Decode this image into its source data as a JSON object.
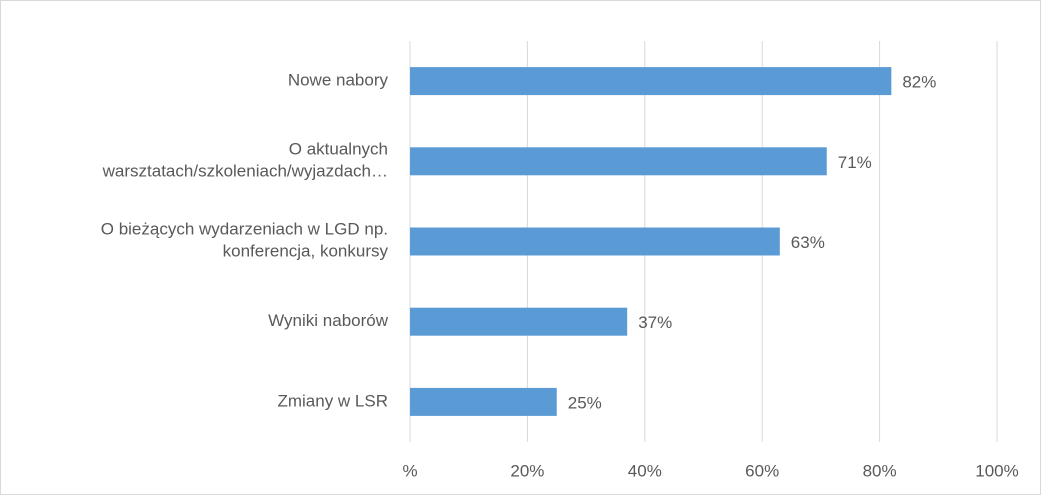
{
  "chart_data": {
    "type": "bar",
    "orientation": "horizontal",
    "categories": [
      "Nowe nabory",
      "O aktualnych\nwarsztatach/szkoleniach/wyjazdach…",
      "O bieżących wydarzeniach w LGD np.\nkonferencja, konkursy",
      "Wyniki naborów",
      "Zmiany w LSR"
    ],
    "values": [
      82,
      71,
      63,
      37,
      25
    ],
    "value_labels": [
      "82%",
      "71%",
      "63%",
      "37%",
      "25%"
    ],
    "color": "#5b9bd5",
    "xlim": [
      0,
      100
    ],
    "xticks": [
      {
        "value": 0,
        "label": "%"
      },
      {
        "value": 20,
        "label": "20%"
      },
      {
        "value": 40,
        "label": "40%"
      },
      {
        "value": 60,
        "label": "60%"
      },
      {
        "value": 80,
        "label": "80%"
      },
      {
        "value": 100,
        "label": "100%"
      }
    ],
    "grid": true
  }
}
